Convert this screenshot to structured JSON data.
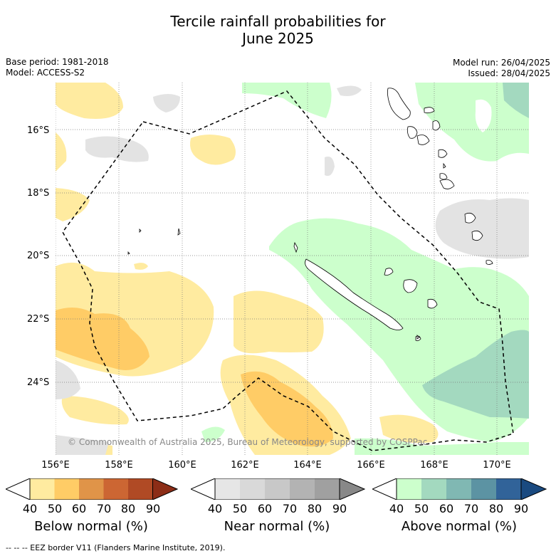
{
  "title_line1": "Tercile rainfall probabilities for",
  "title_line2": "June 2025",
  "base_period": "Base period: 1981-2018",
  "model": "Model: ACCESS-S2",
  "model_run": "Model run: 26/04/2025",
  "issued": "Issued: 28/04/2025",
  "lat_labels": [
    "16°S",
    "18°S",
    "20°S",
    "22°S",
    "24°S"
  ],
  "lon_labels": [
    "156°E",
    "158°E",
    "160°E",
    "162°E",
    "164°E",
    "166°E",
    "168°E",
    "170°E"
  ],
  "copyright": "© Commonwealth of Australia 2025, Bureau of Meteorology, supported by COSPPac",
  "colorbars": [
    {
      "title": "Below normal (%)",
      "ticks": [
        "40",
        "50",
        "60",
        "70",
        "80",
        "90"
      ],
      "colors": [
        "#ffffff",
        "#ffeba0",
        "#ffcc66",
        "#e09448",
        "#cc6633",
        "#b04a25",
        "#8c2d17"
      ]
    },
    {
      "title": "Near normal (%)",
      "ticks": [
        "40",
        "50",
        "60",
        "70",
        "80",
        "90"
      ],
      "colors": [
        "#ffffff",
        "#e6e6e6",
        "#d9d9d9",
        "#c8c8c8",
        "#b3b3b3",
        "#a0a0a0",
        "#888888"
      ]
    },
    {
      "title": "Above normal (%)",
      "ticks": [
        "40",
        "50",
        "60",
        "70",
        "80",
        "90"
      ],
      "colors": [
        "#ffffff",
        "#ccffcc",
        "#a3d9bf",
        "#80b8b3",
        "#5c93a3",
        "#316399",
        "#1a4a80"
      ]
    }
  ],
  "footnote": "-- -- -- EEZ border V11 (Flanders Marine Institute, 2019).",
  "legend_colors": {
    "below_50": "#ffeba0",
    "below_60": "#ffcc66",
    "near_50": "#e3e3e3",
    "above_50": "#ccffcc",
    "above_60": "#a3d9bf"
  }
}
